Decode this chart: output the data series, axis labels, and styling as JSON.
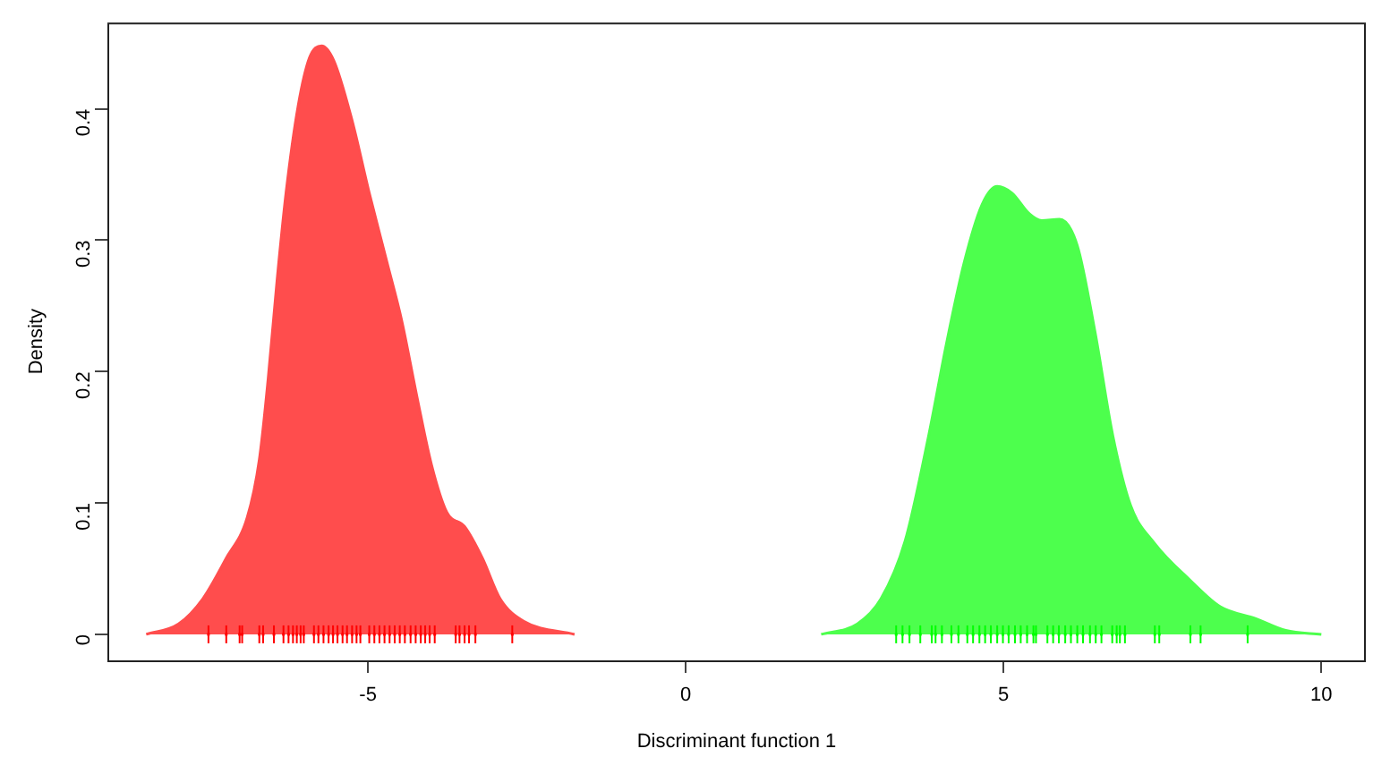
{
  "chart_data": {
    "type": "area",
    "xlabel": "Discriminant function 1",
    "ylabel": "Density",
    "xlim": [
      -9.1,
      10.7
    ],
    "ylim": [
      -0.0198,
      0.4657
    ],
    "xticks": [
      -5,
      0,
      5,
      10
    ],
    "yticks": [
      0,
      0.1,
      0.2,
      0.3,
      0.4
    ],
    "grid": false,
    "legend": false,
    "series": [
      {
        "color": "#ff4d4d",
        "x": [
          -8.49,
          -7.98,
          -7.6,
          -7.23,
          -6.9,
          -6.71,
          -6.57,
          -6.43,
          -6.29,
          -6.1,
          -5.92,
          -5.73,
          -5.54,
          -5.26,
          -4.98,
          -4.7,
          -4.47,
          -4.23,
          -4.0,
          -3.76,
          -3.48,
          -3.2,
          -2.92,
          -2.55,
          -1.75
        ],
        "values": [
          0,
          0.008,
          0.027,
          0.058,
          0.089,
          0.133,
          0.195,
          0.27,
          0.336,
          0.402,
          0.439,
          0.448,
          0.437,
          0.393,
          0.336,
          0.283,
          0.239,
          0.181,
          0.129,
          0.093,
          0.082,
          0.058,
          0.027,
          0.01,
          0
        ]
      },
      {
        "color": "#4dff4d",
        "x": [
          2.13,
          2.7,
          3.07,
          3.45,
          3.82,
          4.1,
          4.38,
          4.66,
          4.9,
          5.13,
          5.41,
          5.6,
          5.88,
          6.16,
          6.44,
          6.72,
          7.0,
          7.38,
          7.94,
          8.41,
          8.97,
          9.44,
          10.0
        ],
        "values": [
          0,
          0.008,
          0.027,
          0.071,
          0.151,
          0.221,
          0.283,
          0.327,
          0.341,
          0.336,
          0.32,
          0.315,
          0.316,
          0.296,
          0.23,
          0.151,
          0.098,
          0.069,
          0.041,
          0.021,
          0.012,
          0.003,
          0
        ]
      },
      {
        "type": "scatter",
        "color": "#ff0000",
        "x": [
          -7.51,
          -7.23,
          -7.02,
          -6.98,
          -6.71,
          -6.65,
          -6.48,
          -6.33,
          -6.25,
          -6.18,
          -6.12,
          -6.06,
          -6.01,
          -5.85,
          -5.78,
          -5.7,
          -5.62,
          -5.55,
          -5.48,
          -5.4,
          -5.33,
          -5.25,
          -5.18,
          -5.12,
          -4.98,
          -4.9,
          -4.82,
          -4.74,
          -4.66,
          -4.58,
          -4.5,
          -4.42,
          -4.33,
          -4.25,
          -4.17,
          -4.1,
          -4.03,
          -3.95,
          -3.62,
          -3.56,
          -3.48,
          -3.41,
          -3.31,
          -2.73
        ],
        "values": [
          0,
          0,
          0,
          0,
          0,
          0,
          0,
          0,
          0,
          0,
          0,
          0,
          0,
          0,
          0,
          0,
          0,
          0,
          0,
          0,
          0,
          0,
          0,
          0,
          0,
          0,
          0,
          0,
          0,
          0,
          0,
          0,
          0,
          0,
          0,
          0,
          0,
          0,
          0,
          0,
          0,
          0,
          0,
          0
        ]
      },
      {
        "type": "scatter",
        "color": "#00ff00",
        "x": [
          3.31,
          3.41,
          3.52,
          3.69,
          3.87,
          3.93,
          4.03,
          4.18,
          4.29,
          4.43,
          4.52,
          4.62,
          4.71,
          4.8,
          4.9,
          4.99,
          5.08,
          5.18,
          5.27,
          5.37,
          5.47,
          5.51,
          5.69,
          5.78,
          5.87,
          5.97,
          6.06,
          6.16,
          6.25,
          6.36,
          6.45,
          6.54,
          6.71,
          6.78,
          6.83,
          6.91,
          7.38,
          7.45,
          7.94,
          8.1,
          8.84
        ],
        "values": [
          0,
          0,
          0,
          0,
          0,
          0,
          0,
          0,
          0,
          0,
          0,
          0,
          0,
          0,
          0,
          0,
          0,
          0,
          0,
          0,
          0,
          0,
          0,
          0,
          0,
          0,
          0,
          0,
          0,
          0,
          0,
          0,
          0,
          0,
          0,
          0,
          0,
          0,
          0,
          0,
          0
        ]
      }
    ]
  }
}
